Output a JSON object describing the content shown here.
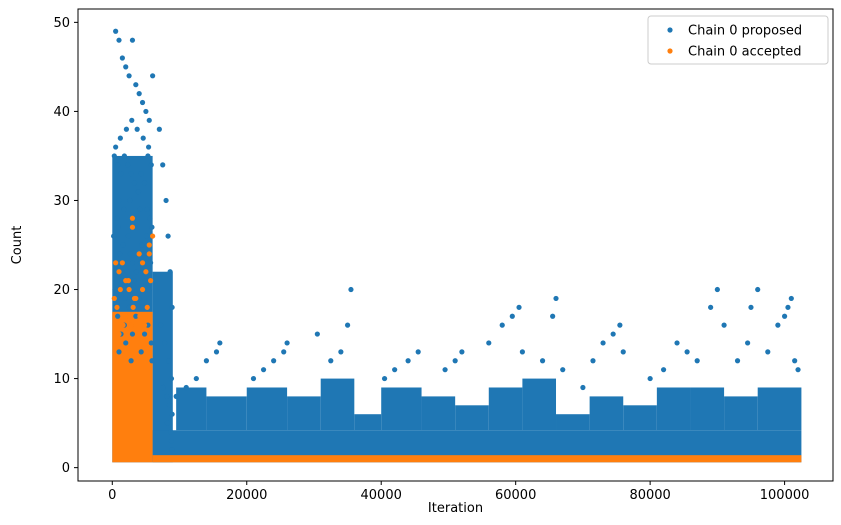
{
  "chart_data": {
    "type": "scatter",
    "title": "",
    "xlabel": "Iteration",
    "ylabel": "Count",
    "xlim": [
      -5100,
      107200
    ],
    "ylim": [
      -1.5,
      51.5
    ],
    "x_ticks": [
      0,
      20000,
      40000,
      60000,
      80000,
      100000
    ],
    "y_ticks": [
      0,
      10,
      20,
      30,
      40,
      50
    ],
    "grid": false,
    "legend_position": "upper right",
    "series": [
      {
        "name": "Chain 0 proposed",
        "color": "#1f77b4",
        "marker": "circle",
        "x": [
          500,
          1000,
          1500,
          2000,
          2500,
          3000,
          3500,
          4000,
          4500,
          5000,
          5500,
          6000,
          500,
          1200,
          2100,
          2900,
          3700,
          4600,
          5400,
          300,
          800,
          1300,
          1800,
          2300,
          2800,
          3300,
          3800,
          4300,
          4800,
          5300,
          5800,
          1000,
          2600,
          3900,
          5200,
          700,
          1700,
          3100,
          4100,
          5600,
          200,
          900,
          1600,
          2400,
          3400,
          4400,
          5100,
          5900,
          1100,
          2700,
          4700,
          600,
          1400,
          2200,
          3000,
          3600,
          4200,
          5000,
          5700,
          1500,
          3200,
          4900,
          400,
          1900,
          2900,
          4000,
          5500,
          2500,
          4500,
          800,
          1800,
          3500,
          5300,
          1300,
          3000,
          4800,
          2000,
          5800,
          1000,
          4300,
          2800,
          5900,
          7000,
          7500,
          8000,
          8300,
          8600,
          8900,
          7200,
          7800,
          8400,
          8800,
          7600,
          8100,
          8500,
          8900,
          8200,
          8700,
          8800,
          8900,
          9500,
          11000,
          12500,
          14000,
          15500,
          16000,
          21000,
          22500,
          24000,
          25500,
          26000,
          30500,
          32500,
          34000,
          35000,
          35500,
          40500,
          42000,
          44000,
          45500,
          49500,
          51000,
          52000,
          56000,
          58000,
          59500,
          60500,
          61000,
          64000,
          65500,
          66000,
          67000,
          70000,
          71500,
          73000,
          74500,
          75500,
          76000,
          80000,
          82000,
          84000,
          85500,
          87000,
          89000,
          90000,
          91000,
          93000,
          94500,
          95000,
          96000,
          97500,
          99000,
          100000,
          100500,
          101000,
          101500,
          102000
        ],
        "y": [
          49,
          48,
          46,
          45,
          44,
          48,
          43,
          42,
          41,
          40,
          39,
          44,
          36,
          37,
          38,
          39,
          38,
          37,
          36,
          35,
          34,
          33,
          35,
          34,
          33,
          32,
          31,
          33,
          32,
          35,
          34,
          30,
          30,
          31,
          29,
          28,
          29,
          28,
          29,
          28,
          26,
          27,
          25,
          26,
          27,
          25,
          26,
          27,
          24,
          24,
          24,
          22,
          23,
          22,
          23,
          22,
          23,
          22,
          23,
          21,
          21,
          21,
          20,
          19,
          20,
          19,
          20,
          18,
          18,
          17,
          16,
          17,
          16,
          15,
          15,
          15,
          14,
          14,
          13,
          13,
          12,
          12,
          38,
          34,
          30,
          26,
          22,
          18,
          16,
          14,
          12,
          10,
          9,
          8,
          7,
          6,
          5,
          4,
          3,
          2,
          8,
          9,
          10,
          12,
          13,
          14,
          10,
          11,
          12,
          13,
          14,
          15,
          12,
          13,
          16,
          20,
          10,
          11,
          12,
          13,
          11,
          12,
          13,
          14,
          16,
          17,
          18,
          13,
          12,
          17,
          19,
          11,
          9,
          12,
          14,
          15,
          16,
          13,
          10,
          11,
          14,
          13,
          12,
          18,
          20,
          16,
          12,
          14,
          18,
          20,
          13,
          16,
          17,
          18,
          19,
          12,
          11
        ]
      },
      {
        "name": "Chain 0 accepted",
        "color": "#ff7f0e",
        "marker": "circle",
        "x": [
          500,
          1000,
          1500,
          2000,
          2500,
          3000,
          3500,
          4000,
          4500,
          5000,
          5500,
          6000,
          300,
          1200,
          2400,
          3300,
          4500,
          5700,
          700,
          2000,
          3100,
          4100,
          5200,
          1600,
          2800,
          4800,
          3000,
          5500,
          1000,
          4000
        ],
        "y": [
          23,
          22,
          23,
          21,
          20,
          28,
          19,
          24,
          23,
          22,
          25,
          26,
          19,
          20,
          21,
          19,
          20,
          21,
          18,
          17,
          18,
          17,
          18,
          16,
          16,
          16,
          27,
          24,
          15,
          15
        ]
      }
    ]
  }
}
